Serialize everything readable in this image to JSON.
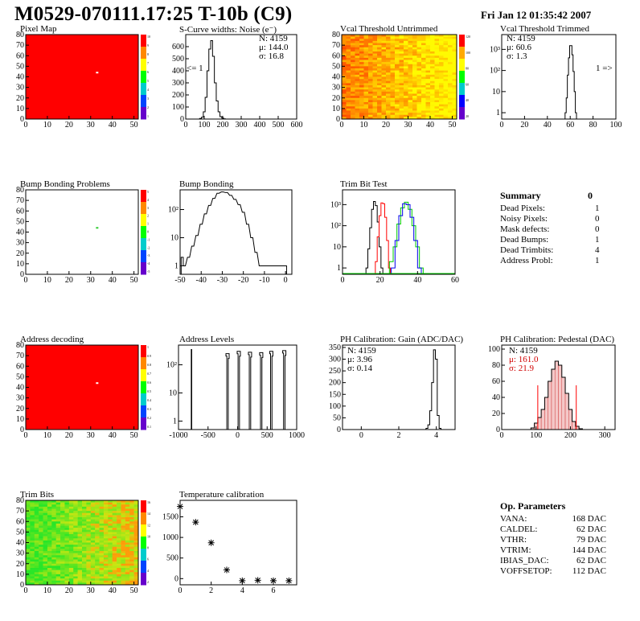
{
  "header": {
    "title": "M0529-070111.17:25 T-10b (C9)",
    "date": "Fri Jan 12 01:35:42 2007"
  },
  "palette": {
    "red": "#ff0000",
    "black": "#000000",
    "green": "#00cc00",
    "blue": "#0000ee",
    "frame": "#000000"
  },
  "panels": {
    "pixel_map": {
      "title": "Pixel Map"
    },
    "scurve": {
      "title": "S-Curve widths: Noise (e⁻)",
      "stats": [
        "N: 4159",
        "μ: 144.0",
        "σ: 16.8"
      ],
      "underflow": "<= 1"
    },
    "vcal_untrimmed": {
      "title": "Vcal Threshold Untrimmed"
    },
    "vcal_trimmed": {
      "title": "Vcal Threshold Trimmed",
      "stats": [
        "N: 4159",
        "μ: 60.6",
        "σ:  1.3"
      ],
      "overflow": "1 =>"
    },
    "bump_problems": {
      "title": "Bump Bonding Problems"
    },
    "bump_bonding": {
      "title": "Bump Bonding"
    },
    "trim_bit_test": {
      "title": "Trim Bit Test"
    },
    "address_decoding": {
      "title": "Address decoding"
    },
    "address_levels": {
      "title": "Address Levels"
    },
    "ph_gain": {
      "title": "PH Calibration: Gain (ADC/DAC)",
      "stats": [
        "N: 4159",
        "μ: 3.96",
        "σ: 0.14"
      ]
    },
    "ph_pedestal": {
      "title": "PH Calibration: Pedestal (DAC)",
      "stats": [
        "N: 4159",
        "μ: 161.0",
        "σ: 21.9"
      ]
    },
    "trim_bits": {
      "title": "Trim Bits"
    },
    "temperature": {
      "title": "Temperature calibration"
    }
  },
  "summary": {
    "heading": "Summary",
    "total": "0",
    "rows": [
      {
        "label": "Dead Pixels:",
        "value": "1"
      },
      {
        "label": "Noisy Pixels:",
        "value": "0"
      },
      {
        "label": "Mask defects:",
        "value": "0"
      },
      {
        "label": "Dead Bumps:",
        "value": "1"
      },
      {
        "label": "Dead Trimbits:",
        "value": "4"
      },
      {
        "label": "Address Probl:",
        "value": "1"
      }
    ]
  },
  "op_parameters": {
    "heading": "Op. Parameters",
    "rows": [
      {
        "label": "VANA:",
        "value": "168 DAC"
      },
      {
        "label": "CALDEL:",
        "value": "62 DAC"
      },
      {
        "label": "VTHR:",
        "value": "79 DAC"
      },
      {
        "label": "VTRIM:",
        "value": "144 DAC"
      },
      {
        "label": "IBIAS_DAC:",
        "value": "62 DAC"
      },
      {
        "label": "VOFFSETOP:",
        "value": "112 DAC"
      }
    ]
  },
  "chart_data": [
    {
      "id": "pixel_map",
      "type": "heatmap",
      "title": "Pixel Map",
      "xlim": [
        0,
        52
      ],
      "ylim": [
        0,
        80
      ],
      "xticks": [
        "0",
        "10",
        "20",
        "30",
        "40",
        "50"
      ],
      "yticks": [
        "0",
        "10",
        "20",
        "30",
        "40",
        "50",
        "60",
        "70",
        "80"
      ],
      "fill": "uniform",
      "hotspot": {
        "x": 33,
        "y": 44
      },
      "zticks": [
        "10",
        "9",
        "8",
        "7",
        "6",
        "5",
        "4",
        "3",
        "2",
        "1"
      ]
    },
    {
      "id": "scurve",
      "type": "histogram",
      "title": "S-Curve widths: Noise (e⁻)",
      "xlim": [
        0,
        600
      ],
      "ylim": [
        0,
        700
      ],
      "xticks": [
        "0",
        "100",
        "200",
        "300",
        "400",
        "500",
        "600"
      ],
      "yticks": [
        "0",
        "100",
        "200",
        "300",
        "400",
        "500",
        "600"
      ],
      "x": [
        80,
        90,
        100,
        110,
        120,
        130,
        140,
        150,
        160,
        170,
        180,
        190,
        200,
        210
      ],
      "y": [
        5,
        15,
        60,
        180,
        400,
        580,
        650,
        520,
        300,
        150,
        60,
        20,
        8,
        2
      ]
    },
    {
      "id": "vcal_untrimmed",
      "type": "heatmap",
      "title": "Vcal Threshold Untrimmed",
      "xlim": [
        0,
        52
      ],
      "ylim": [
        0,
        80
      ],
      "xticks": [
        "0",
        "10",
        "20",
        "30",
        "40",
        "50"
      ],
      "yticks": [
        "0",
        "10",
        "20",
        "30",
        "40",
        "50",
        "60",
        "70",
        "80"
      ],
      "fill": "gradient-red-to-yellow",
      "zticks": [
        "120",
        "100",
        "80",
        "60",
        "40",
        "20"
      ]
    },
    {
      "id": "vcal_trimmed",
      "type": "histogram",
      "title": "Vcal Threshold Trimmed",
      "log": true,
      "xlim": [
        0,
        100
      ],
      "xticks": [
        "0",
        "20",
        "40",
        "60",
        "80",
        "100"
      ],
      "yticks": [
        "1",
        "10",
        "10²",
        "10³"
      ],
      "x": [
        56,
        57,
        58,
        59,
        60,
        61,
        62,
        63,
        64,
        65
      ],
      "y": [
        1,
        5,
        60,
        400,
        1500,
        1500,
        550,
        90,
        10,
        1
      ]
    },
    {
      "id": "bump_problems",
      "type": "heatmap",
      "title": "Bump Bonding Problems",
      "xlim": [
        0,
        52
      ],
      "ylim": [
        0,
        80
      ],
      "xticks": [
        "0",
        "10",
        "20",
        "30",
        "40",
        "50"
      ],
      "yticks": [
        "0",
        "10",
        "20",
        "30",
        "40",
        "50",
        "60",
        "70",
        "80"
      ],
      "fill": "empty",
      "hotspot": {
        "x": 33,
        "y": 44
      },
      "zticks": [
        "5",
        "4",
        "3",
        "2",
        "1",
        "0",
        "-1",
        "-2",
        "-3",
        "-4",
        "-5"
      ]
    },
    {
      "id": "bump_bonding",
      "type": "histogram",
      "title": "Bump Bonding",
      "log": true,
      "xlim": [
        -50,
        3
      ],
      "xticks": [
        "-50",
        "-40",
        "-30",
        "-20",
        "-10",
        "0"
      ],
      "yticks": [
        "1",
        "10",
        "10²"
      ],
      "x": [
        -49,
        -48,
        -46,
        -44,
        -42,
        -40,
        -38,
        -36,
        -34,
        -32,
        -30,
        -28,
        -26,
        -24,
        -22,
        -20,
        -18,
        -16,
        -14,
        -12,
        -10,
        0
      ],
      "y": [
        2,
        1,
        2,
        5,
        12,
        30,
        70,
        140,
        250,
        380,
        420,
        400,
        320,
        230,
        150,
        80,
        30,
        10,
        3,
        1,
        1,
        1
      ]
    },
    {
      "id": "trim_bit_test",
      "type": "histogram",
      "title": "Trim Bit Test",
      "log": true,
      "xlim": [
        0,
        60
      ],
      "xticks": [
        "0",
        "20",
        "40",
        "60"
      ],
      "yticks": [
        "1",
        "10",
        "10²",
        "10³"
      ],
      "series": [
        {
          "color": "black",
          "x": [
            13,
            14,
            15,
            16,
            17,
            18,
            19,
            20,
            21
          ],
          "y": [
            1,
            8,
            80,
            600,
            1400,
            900,
            150,
            10,
            1
          ]
        },
        {
          "color": "red",
          "x": [
            18,
            19,
            20,
            21,
            22,
            23,
            24,
            25
          ],
          "y": [
            2,
            30,
            300,
            1200,
            1100,
            250,
            20,
            1
          ]
        },
        {
          "color": "green",
          "x": [
            26,
            28,
            30,
            32,
            34,
            36,
            38,
            40,
            42
          ],
          "y": [
            2,
            10,
            120,
            700,
            1300,
            600,
            100,
            10,
            1
          ]
        },
        {
          "color": "blue",
          "x": [
            27,
            29,
            31,
            33,
            35,
            37,
            39,
            41
          ],
          "y": [
            1,
            20,
            300,
            1100,
            1000,
            250,
            20,
            1
          ]
        }
      ]
    },
    {
      "id": "address_decoding",
      "type": "heatmap",
      "title": "Address decoding",
      "xlim": [
        0,
        52
      ],
      "ylim": [
        0,
        80
      ],
      "xticks": [
        "0",
        "10",
        "20",
        "30",
        "40",
        "50"
      ],
      "yticks": [
        "0",
        "10",
        "20",
        "30",
        "40",
        "50",
        "60",
        "70",
        "80"
      ],
      "fill": "uniform",
      "hotspot": {
        "x": 33,
        "y": 44
      },
      "zticks": [
        "1",
        "0.9",
        "0.8",
        "0.7",
        "0.6",
        "0.5",
        "0.4",
        "0.3",
        "0.2",
        "0.1"
      ]
    },
    {
      "id": "address_levels",
      "type": "histogram",
      "title": "Address Levels",
      "log": true,
      "xlim": [
        -1000,
        1000
      ],
      "xticks": [
        "-1000",
        "-500",
        "0",
        "500",
        "1000"
      ],
      "yticks": [
        "1",
        "10",
        "10²"
      ],
      "x": [
        -780,
        -170,
        20,
        210,
        400,
        570,
        790
      ],
      "y": [
        350,
        250,
        300,
        280,
        270,
        300,
        320
      ]
    },
    {
      "id": "ph_gain",
      "type": "histogram",
      "title": "PH Calibration: Gain (ADC/DAC)",
      "xlim": [
        -1,
        5
      ],
      "ylim": [
        0,
        360
      ],
      "xticks": [
        "0",
        "2",
        "4"
      ],
      "yticks": [
        "0",
        "50",
        "100",
        "150",
        "200",
        "250",
        "300",
        "350"
      ],
      "x": [
        3.5,
        3.6,
        3.7,
        3.8,
        3.9,
        4.0,
        4.1,
        4.2
      ],
      "y": [
        5,
        20,
        80,
        200,
        340,
        300,
        60,
        5
      ]
    },
    {
      "id": "ph_pedestal",
      "type": "histogram",
      "title": "PH Calibration: Pedestal (DAC)",
      "xlim": [
        0,
        330
      ],
      "ylim": [
        0,
        105
      ],
      "xticks": [
        "0",
        "100",
        "200",
        "300"
      ],
      "yticks": [
        "0",
        "20",
        "40",
        "60",
        "80",
        "100"
      ],
      "x": [
        90,
        100,
        110,
        120,
        130,
        140,
        150,
        160,
        170,
        180,
        190,
        200,
        210,
        220,
        230
      ],
      "y": [
        2,
        8,
        15,
        25,
        40,
        60,
        75,
        85,
        80,
        65,
        45,
        25,
        10,
        4,
        1
      ],
      "markers": [
        105,
        217
      ]
    },
    {
      "id": "trim_bits",
      "type": "heatmap",
      "title": "Trim Bits",
      "xlim": [
        0,
        52
      ],
      "ylim": [
        0,
        80
      ],
      "xticks": [
        "0",
        "10",
        "20",
        "30",
        "40",
        "50"
      ],
      "yticks": [
        "0",
        "10",
        "20",
        "30",
        "40",
        "50",
        "60",
        "70",
        "80"
      ],
      "fill": "gradient-green-to-yellow",
      "zticks": [
        "16",
        "14",
        "12",
        "10",
        "8",
        "6",
        "4",
        "2"
      ]
    },
    {
      "id": "temperature",
      "type": "scatter",
      "title": "Temperature calibration",
      "xlim": [
        0,
        7.5
      ],
      "ylim": [
        -150,
        1900
      ],
      "xticks": [
        "0",
        "2",
        "4",
        "6"
      ],
      "yticks": [
        "0",
        "500",
        "1000",
        "1500"
      ],
      "x": [
        0,
        1,
        2,
        3,
        4,
        5,
        6,
        7
      ],
      "y": [
        1750,
        1370,
        870,
        210,
        -50,
        -40,
        -50,
        -50
      ]
    }
  ]
}
